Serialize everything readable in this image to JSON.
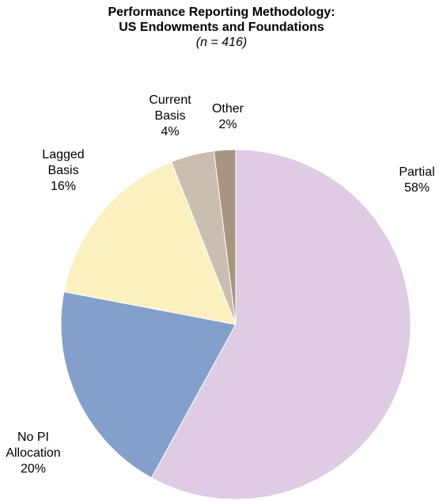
{
  "chart_data": {
    "type": "pie",
    "title": "Performance Reporting Methodology: US Endowments and Foundations",
    "subtitle": "(n = 416)",
    "categories": [
      "Partial",
      "No PI Allocation",
      "Lagged Basis",
      "Current Basis",
      "Other"
    ],
    "values": [
      58,
      20,
      16,
      4,
      2
    ],
    "value_labels": [
      "58%",
      "20%",
      "16%",
      "4%",
      "2%"
    ],
    "colors": [
      "#dfcbe3",
      "#849fcb",
      "#fdf0c0",
      "#cabdb1",
      "#a69580"
    ]
  }
}
